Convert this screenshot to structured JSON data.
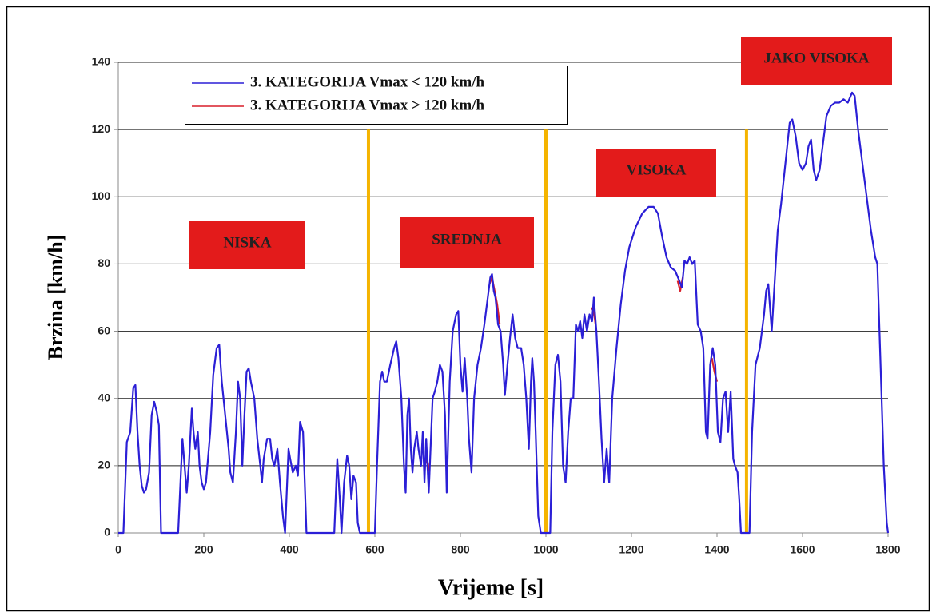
{
  "chart_data": {
    "type": "line",
    "xlabel": "Vrijeme [s]",
    "ylabel": "Brzina [km/h]",
    "xlim": [
      0,
      1800
    ],
    "ylim": [
      0,
      140
    ],
    "xticks": [
      0,
      200,
      400,
      600,
      800,
      1000,
      1200,
      1400,
      1600,
      1800
    ],
    "yticks": [
      0,
      20,
      40,
      60,
      80,
      100,
      120,
      140
    ],
    "grid": true,
    "legend": "upper left",
    "phase_boundaries": [
      585,
      1000,
      1469
    ],
    "phase_boundary_color": "#f5b400",
    "annotations": [
      {
        "text": "NISKA",
        "color": "#e31b1b"
      },
      {
        "text": "SREDNJA",
        "color": "#e31b1b"
      },
      {
        "text": "VISOKA",
        "color": "#e31b1b"
      },
      {
        "text": "JAKO VISOKA",
        "color": "#e31b1b"
      }
    ],
    "series": [
      {
        "name": "3. KATEGORIJA Vmax < 120 km/h",
        "color": "#2b1fd6",
        "x": [
          0,
          12,
          20,
          28,
          35,
          40,
          45,
          50,
          55,
          60,
          65,
          72,
          78,
          84,
          90,
          95,
          100,
          105,
          140,
          150,
          155,
          160,
          165,
          172,
          176,
          180,
          186,
          190,
          195,
          200,
          205,
          215,
          222,
          230,
          236,
          242,
          250,
          258,
          262,
          268,
          275,
          280,
          285,
          290,
          295,
          300,
          305,
          310,
          318,
          325,
          332,
          336,
          340,
          348,
          355,
          360,
          365,
          372,
          378,
          385,
          390,
          398,
          402,
          408,
          415,
          420,
          425,
          432,
          436,
          440,
          505,
          512,
          518,
          522,
          528,
          535,
          540,
          545,
          550,
          556,
          560,
          565,
          585,
          590,
          600,
          605,
          612,
          617,
          622,
          628,
          636,
          645,
          650,
          655,
          662,
          668,
          672,
          676,
          680,
          684,
          688,
          692,
          698,
          702,
          708,
          712,
          716,
          720,
          726,
          735,
          740,
          746,
          752,
          758,
          764,
          768,
          775,
          782,
          790,
          795,
          800,
          805,
          810,
          816,
          820,
          826,
          832,
          840,
          848,
          856,
          862,
          870,
          874,
          878,
          882,
          888,
          894,
          900,
          904,
          910,
          916,
          922,
          928,
          934,
          942,
          948,
          954,
          960,
          965,
          968,
          972,
          976,
          982,
          988,
          1000,
          1010,
          1015,
          1022,
          1028,
          1034,
          1040,
          1046,
          1052,
          1058,
          1064,
          1070,
          1075,
          1080,
          1085,
          1090,
          1096,
          1102,
          1108,
          1112,
          1118,
          1124,
          1130,
          1136,
          1142,
          1148,
          1155,
          1165,
          1175,
          1185,
          1195,
          1210,
          1225,
          1240,
          1252,
          1262,
          1272,
          1282,
          1292,
          1302,
          1312,
          1318,
          1324,
          1330,
          1336,
          1342,
          1348,
          1355,
          1362,
          1368,
          1374,
          1378,
          1384,
          1390,
          1396,
          1402,
          1408,
          1414,
          1420,
          1426,
          1432,
          1438,
          1442,
          1448,
          1452,
          1456,
          1469,
          1476,
          1482,
          1490,
          1500,
          1510,
          1515,
          1520,
          1528,
          1535,
          1542,
          1550,
          1560,
          1570,
          1576,
          1584,
          1592,
          1600,
          1608,
          1614,
          1620,
          1626,
          1632,
          1640,
          1648,
          1656,
          1666,
          1676,
          1686,
          1696,
          1706,
          1716,
          1722,
          1730,
          1740,
          1750,
          1760,
          1770,
          1775,
          1780,
          1790,
          1797,
          1800
        ],
        "values": [
          0,
          0,
          27,
          30,
          43,
          44,
          30,
          20,
          14,
          12,
          13,
          18,
          35,
          39,
          36,
          32,
          0,
          0,
          0,
          28,
          20,
          12,
          20,
          37,
          30,
          25,
          30,
          20,
          15,
          13,
          15,
          30,
          47,
          55,
          56,
          45,
          35,
          25,
          18,
          15,
          30,
          45,
          40,
          20,
          35,
          48,
          49,
          45,
          40,
          28,
          20,
          15,
          22,
          28,
          28,
          22,
          20,
          25,
          15,
          5,
          0,
          25,
          22,
          18,
          20,
          17,
          33,
          30,
          15,
          0,
          0,
          22,
          10,
          0,
          15,
          23,
          20,
          10,
          17,
          15,
          3,
          0,
          0,
          0,
          0,
          20,
          45,
          48,
          45,
          45,
          50,
          55,
          57,
          52,
          40,
          20,
          12,
          35,
          40,
          25,
          18,
          25,
          30,
          25,
          20,
          30,
          15,
          28,
          12,
          40,
          42,
          45,
          50,
          48,
          35,
          12,
          45,
          60,
          65,
          66,
          50,
          42,
          52,
          40,
          28,
          18,
          40,
          50,
          55,
          62,
          68,
          76,
          77,
          72,
          70,
          62,
          60,
          50,
          41,
          50,
          58,
          65,
          58,
          55,
          55,
          50,
          40,
          25,
          45,
          52,
          45,
          30,
          5,
          0,
          0,
          0,
          30,
          50,
          53,
          45,
          20,
          15,
          30,
          40,
          40,
          62,
          60,
          63,
          58,
          65,
          60,
          65,
          63,
          70,
          60,
          45,
          28,
          15,
          25,
          15,
          40,
          55,
          68,
          78,
          85,
          91,
          95,
          97,
          97,
          95,
          88,
          82,
          79,
          78,
          75,
          73,
          81,
          80,
          82,
          80,
          81,
          62,
          60,
          55,
          30,
          28,
          50,
          55,
          50,
          30,
          27,
          40,
          42,
          30,
          42,
          22,
          20,
          18,
          10,
          0,
          0,
          0,
          30,
          50,
          55,
          65,
          72,
          74,
          60,
          75,
          90,
          98,
          110,
          122,
          123,
          118,
          110,
          108,
          110,
          115,
          117,
          108,
          105,
          108,
          116,
          124,
          127,
          128,
          128,
          129,
          128,
          131,
          130,
          120,
          110,
          100,
          90,
          82,
          80,
          60,
          20,
          3,
          0
        ]
      },
      {
        "name": "3. KATEGORIJA Vmax > 120 km/h",
        "color": "#d81f2a",
        "x": [
          716,
          722,
          728,
          null,
          868,
          874,
          880,
          886,
          892,
          null,
          1106,
          1112,
          1118,
          null,
          1308,
          1314,
          1320,
          null,
          1388,
          1394,
          1400
        ],
        "values": [
          20,
          22,
          18,
          null,
          74,
          76,
          72,
          68,
          62,
          null,
          67,
          66,
          60,
          null,
          75,
          72,
          76,
          null,
          52,
          48,
          45
        ]
      }
    ]
  }
}
